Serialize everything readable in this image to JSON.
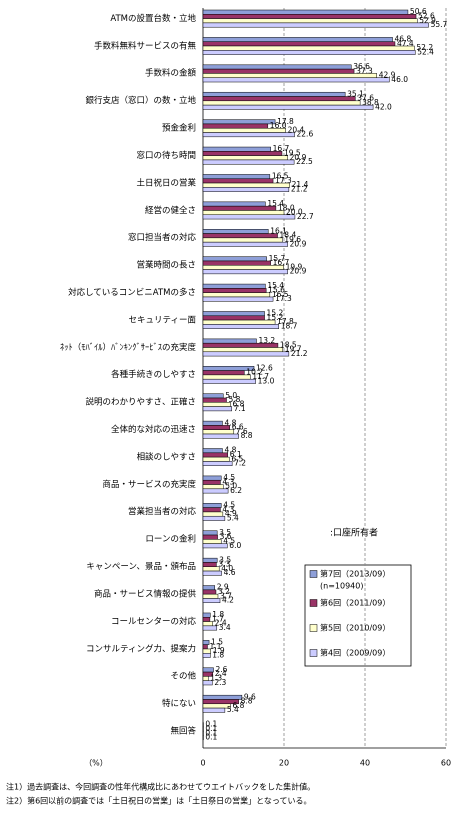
{
  "chart_data": {
    "type": "hbar",
    "categories": [
      "ATMの設置台数・立地",
      "手数料無料サービスの有無",
      "手数料の金額",
      "銀行支店（窓口）の数・立地",
      "預金金利",
      "窓口の待ち時間",
      "土日祝日の営業",
      "経営の健全さ",
      "窓口担当者の対応",
      "営業時間の長さ",
      "対応しているコンビニATMの多さ",
      "セキュリティー面",
      "ﾈｯﾄ（ﾓﾊﾞｲﾙ）ﾊﾞﾝｷﾝｸﾞｻｰﾋﾞｽの充実度",
      "各種手続きのしやすさ",
      "説明のわかりやすさ、正確さ",
      "全体的な対応の迅速さ",
      "相談のしやすさ",
      "商品・サービスの充実度",
      "営業担当者の対応",
      "ローンの金利",
      "キャンペーン、景品・頒布品",
      "商品・サービス情報の提供",
      "コールセンターの対応",
      "コンサルティング力、提案力",
      "その他",
      "特にない",
      "無回答"
    ],
    "series": [
      {
        "name": "第7回（2013/09）",
        "color": "#8e9fd8",
        "values": [
          50.6,
          46.8,
          36.6,
          35.1,
          17.8,
          16.7,
          16.5,
          15.4,
          16.1,
          15.7,
          15.4,
          15.2,
          13.2,
          12.6,
          5.0,
          4.8,
          4.8,
          4.5,
          4.5,
          3.5,
          3.5,
          2.9,
          1.8,
          1.5,
          2.6,
          9.6,
          0.1
        ],
        "value_labels": [
          "50.6",
          "46.8",
          "36.6",
          "35.1",
          "17.8",
          "16.7",
          "16.5",
          "15.4",
          "16.1",
          "15.7",
          "15.4",
          "15.2",
          "13.2",
          "12.6",
          "5.0",
          "4.8",
          "4.8",
          "4.5",
          "4.5",
          "3.5",
          "3.5",
          "2.9",
          "1.8",
          "1.5",
          "2.6",
          "9.6",
          "0.1"
        ]
      },
      {
        "name": "第6回（2011/09）",
        "color": "#993366",
        "values": [
          52.6,
          47.4,
          37.3,
          37.6,
          16.0,
          19.5,
          17.3,
          18.0,
          18.4,
          16.7,
          15.6,
          15.2,
          18.5,
          10.2,
          5.8,
          6.6,
          6.1,
          4.3,
          4.3,
          3.6,
          3.3,
          3.2,
          1.7,
          1.1,
          2.4,
          8.8,
          0.1
        ],
        "value_labels": [
          "52.6",
          "47.4",
          "37.3",
          "37.6",
          "16.0",
          "19.5",
          "17.3",
          "18.0",
          "18.4",
          "16.7",
          "15.6",
          "15.2",
          "18.5",
          "10.2",
          "5.8",
          "6.6",
          "6.1",
          "4.3",
          "4.3",
          "3.6",
          "3.3",
          "3.2",
          "1.7",
          "1.1",
          "2.4",
          "8.8",
          "0.1"
        ]
      },
      {
        "name": "第5回（2010/09）",
        "color": "#ffffcc",
        "values": [
          52.9,
          52.2,
          42.9,
          38.8,
          20.4,
          20.9,
          21.4,
          20.0,
          19.6,
          19.9,
          16.5,
          17.8,
          19.7,
          11.7,
          6.8,
          7.6,
          6.5,
          5.0,
          4.9,
          4.5,
          4.0,
          3.7,
          2.4,
          1.9,
          1.3,
          6.8,
          0.1
        ],
        "value_labels": [
          "52.9",
          "52.2",
          "42.9",
          "38.8",
          "20.4",
          "20.9",
          "21.4",
          "20.0",
          "19.6",
          "19.9",
          "16.5",
          "17.8",
          "19.7",
          "11.7",
          "6.8",
          "7.6",
          "6.5",
          "5.0",
          "4.9",
          "4.5",
          "4.0",
          "3.7",
          "2.4",
          "1.9",
          "1.3",
          "6.8",
          "0.1"
        ]
      },
      {
        "name": "第4回（2009/09）",
        "color": "#ccccff",
        "values": [
          55.7,
          52.4,
          46.0,
          42.0,
          22.6,
          22.5,
          21.2,
          22.7,
          20.9,
          20.9,
          17.3,
          18.7,
          21.2,
          13.0,
          7.1,
          8.8,
          7.2,
          6.2,
          5.4,
          6.0,
          4.6,
          4.2,
          3.4,
          1.8,
          2.3,
          5.4,
          0.1
        ],
        "value_labels": [
          "55.7",
          "52.4",
          "46.0",
          "42.0",
          "22.6",
          "22.5",
          "21.2",
          "22.7",
          "20.9",
          "20.9",
          "17.3",
          "18.7",
          "21.2",
          "13.0",
          "7.1",
          "8.8",
          "7.2",
          "6.2",
          "5.4",
          "6.0",
          "4.6",
          "4.2",
          "3.4",
          "1.8",
          "2.3",
          "5.4",
          "0.1"
        ]
      }
    ],
    "n_label": "(n=10940)",
    "respondent_note": ":口座所有者",
    "xlabel": "（%）",
    "xlim": [
      0,
      60
    ],
    "xticks": [
      0,
      20,
      40,
      60
    ],
    "grid": true,
    "notes": [
      "注1）過去調査は、今回調査の性年代構成比にあわせてウエイトバックをした集計値。",
      "注2）第6回以前の調査では「土日祝日の営業」は「土日祭日の営業」となっている。"
    ]
  }
}
